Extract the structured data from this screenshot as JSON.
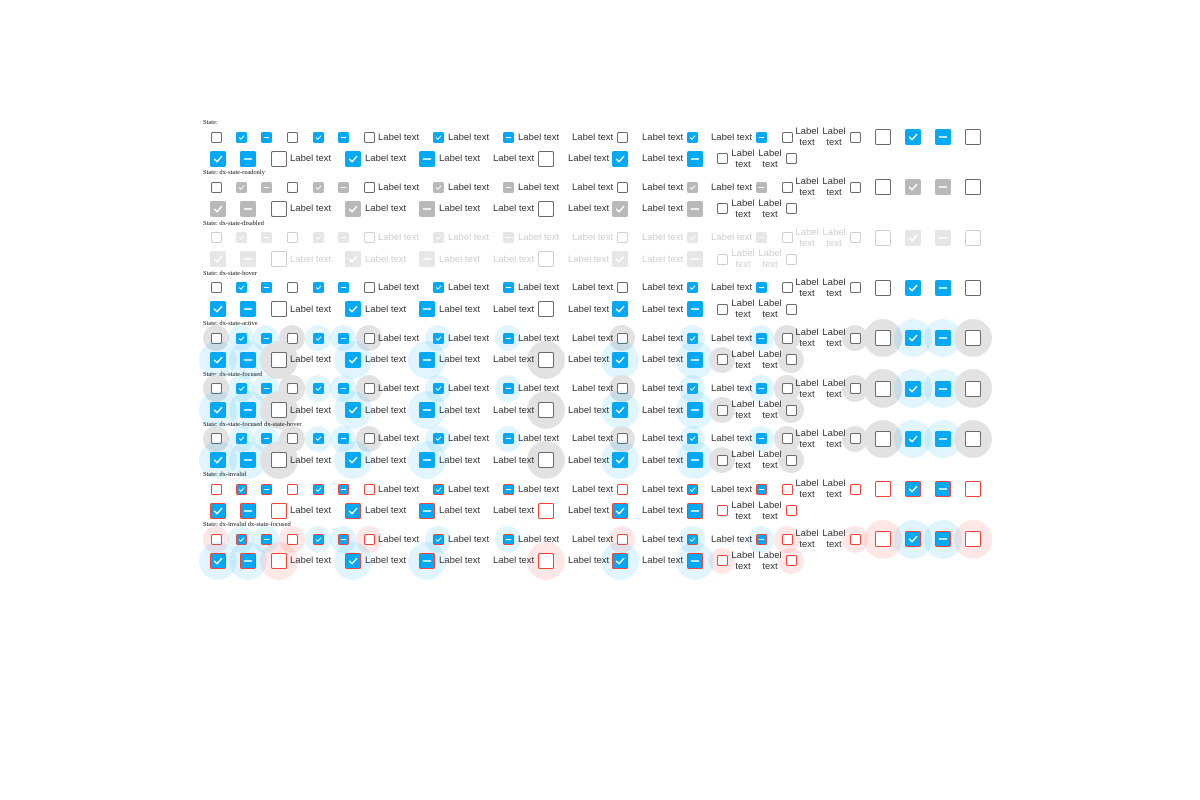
{
  "label_text": "Label text",
  "colors": {
    "accent": "#03a9f4",
    "border": "#6b6b6b",
    "readonly_fill": "#b9b9b9",
    "disabled_border": "#cfcfcf",
    "disabled_fill": "#e6e6e6",
    "invalid": "#f44336",
    "text": "#333333",
    "hover_halo": "rgba(3,169,244,0.12)",
    "active_halo_gray": "#e2e2e2",
    "invalid_halo": "rgba(244,67,54,0.12)"
  },
  "state_groups": [
    {
      "title": "State:",
      "variant": "default"
    },
    {
      "title": "State: dx-state-readonly",
      "variant": "readonly"
    },
    {
      "title": "State: dx-state-disabled",
      "variant": "disabled"
    },
    {
      "title": "State: dx-state-hover",
      "variant": "hover"
    },
    {
      "title": "State: dx-state-active",
      "variant": "active"
    },
    {
      "title": "State: dx-state-focused",
      "variant": "focused"
    },
    {
      "title": "State: dx-state-focused dx-state-hover",
      "variant": "focused"
    },
    {
      "title": "State: dx-invalid",
      "variant": "invalid"
    },
    {
      "title": "State: dx-invalid dx-state-focused",
      "variant": "invalid-focused"
    }
  ],
  "checkbox_states": {
    "checked": "checkmark-icon",
    "indeterminate": "minus-icon",
    "unchecked": "empty-box"
  }
}
